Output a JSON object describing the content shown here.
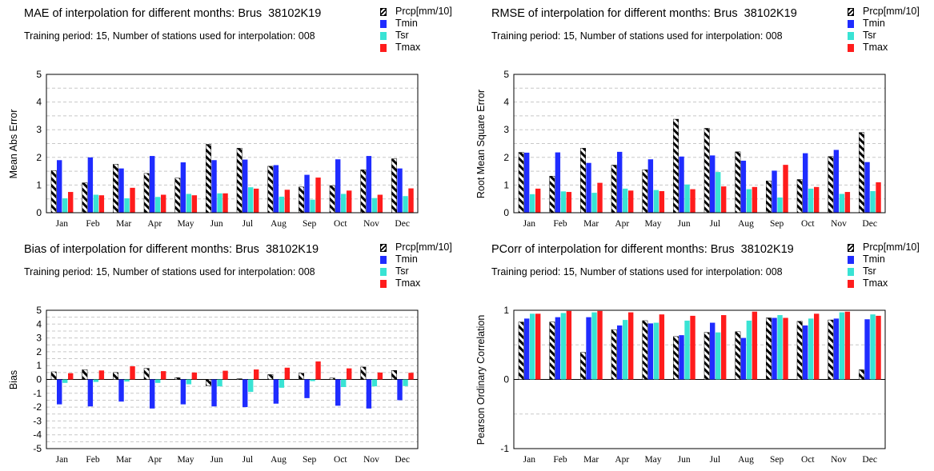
{
  "colors": {
    "Prcp": "hatch-black-white",
    "Tmin": "#1f2cff",
    "Tsr": "#39e3d4",
    "Tmax": "#ff1c1c",
    "grid": "#c8c8c8"
  },
  "chart_data": [
    {
      "type": "bar",
      "title": "MAE of interpolation for different months: Brus  38102K19",
      "subtitle": "Training period: 15, Number of stations used for interpolation: 008",
      "ylabel": "Mean Abs Error",
      "xlabel": "",
      "categories": [
        "Jan",
        "Feb",
        "Mar",
        "Apr",
        "May",
        "Jun",
        "Jul",
        "Aug",
        "Sep",
        "Oct",
        "Nov",
        "Dec"
      ],
      "ylim": [
        0,
        5
      ],
      "yticks": [
        "0",
        "1",
        "2",
        "3",
        "4",
        "5"
      ],
      "grid": true,
      "legend_position": "top-right",
      "series": [
        {
          "name": "Prcp[mm/10]",
          "values": [
            1.52,
            1.08,
            1.75,
            1.42,
            1.25,
            2.47,
            2.33,
            1.68,
            0.93,
            0.98,
            1.55,
            1.95
          ]
        },
        {
          "name": "Tmin",
          "values": [
            1.9,
            2.0,
            1.6,
            2.05,
            1.82,
            1.9,
            1.92,
            1.72,
            1.37,
            1.93,
            2.05,
            1.6
          ]
        },
        {
          "name": "Tsr",
          "values": [
            0.52,
            0.65,
            0.52,
            0.57,
            0.68,
            0.7,
            0.92,
            0.58,
            0.47,
            0.68,
            0.53,
            0.6
          ]
        },
        {
          "name": "Tmax",
          "values": [
            0.75,
            0.63,
            0.9,
            0.65,
            0.63,
            0.7,
            0.87,
            0.83,
            1.27,
            0.8,
            0.65,
            0.88
          ]
        }
      ]
    },
    {
      "type": "bar",
      "title": "RMSE of interpolation for different months: Brus  38102K19",
      "subtitle": "Training period: 15, Number of stations used for interpolation: 008",
      "ylabel": "Root Mean Square Error",
      "xlabel": "",
      "categories": [
        "Jan",
        "Feb",
        "Mar",
        "Apr",
        "May",
        "Jun",
        "Jul",
        "Aug",
        "Sep",
        "Oct",
        "Nov",
        "Dec"
      ],
      "ylim": [
        0,
        5
      ],
      "yticks": [
        "0",
        "1",
        "2",
        "3",
        "4",
        "5"
      ],
      "grid": true,
      "legend_position": "top-right",
      "series": [
        {
          "name": "Prcp[mm/10]",
          "values": [
            2.18,
            1.32,
            2.33,
            1.72,
            1.55,
            3.38,
            3.05,
            2.2,
            1.15,
            1.2,
            2.03,
            2.9
          ]
        },
        {
          "name": "Tmin",
          "values": [
            2.17,
            2.18,
            1.8,
            2.2,
            1.93,
            2.03,
            2.07,
            1.88,
            1.52,
            2.15,
            2.27,
            1.83
          ]
        },
        {
          "name": "Tsr",
          "values": [
            0.67,
            0.77,
            0.72,
            0.87,
            0.82,
            1.02,
            1.47,
            0.85,
            0.55,
            0.87,
            0.68,
            0.78
          ]
        },
        {
          "name": "Tmax",
          "values": [
            0.87,
            0.75,
            1.08,
            0.8,
            0.78,
            0.85,
            0.95,
            0.93,
            1.73,
            0.93,
            0.75,
            1.1
          ]
        }
      ]
    },
    {
      "type": "bar",
      "title": "Bias of interpolation for different months: Brus  38102K19",
      "subtitle": "Training period: 15, Number of stations used for interpolation: 008",
      "ylabel": "Bias",
      "xlabel": "",
      "categories": [
        "Jan",
        "Feb",
        "Mar",
        "Apr",
        "May",
        "Jun",
        "Jul",
        "Aug",
        "Sep",
        "Oct",
        "Nov",
        "Dec"
      ],
      "ylim": [
        -5,
        5
      ],
      "yticks": [
        "-5",
        "-4",
        "-3",
        "-2",
        "-1",
        "0",
        "1",
        "2",
        "3",
        "4",
        "5"
      ],
      "grid": true,
      "legend_position": "top-right",
      "series": [
        {
          "name": "Prcp[mm/10]",
          "values": [
            0.55,
            0.7,
            0.5,
            0.8,
            0.13,
            -0.45,
            0.05,
            0.35,
            0.45,
            0.1,
            0.9,
            0.65
          ]
        },
        {
          "name": "Tmin",
          "values": [
            -1.8,
            -1.95,
            -1.6,
            -2.1,
            -1.8,
            -1.95,
            -2.0,
            -1.75,
            -1.35,
            -1.9,
            -2.1,
            -1.5
          ]
        },
        {
          "name": "Tsr",
          "values": [
            -0.25,
            -0.18,
            -0.15,
            -0.25,
            -0.35,
            -0.5,
            -0.9,
            -0.6,
            -0.12,
            -0.55,
            -0.5,
            -0.48
          ]
        },
        {
          "name": "Tmax",
          "values": [
            0.45,
            0.65,
            0.95,
            0.6,
            0.5,
            0.63,
            0.72,
            0.85,
            1.3,
            0.8,
            0.5,
            0.48
          ]
        }
      ]
    },
    {
      "type": "bar",
      "title": "PCorr of interpolation for different months: Brus  38102K19",
      "subtitle": "Training period: 15, Number of stations used for interpolation: 008",
      "ylabel": "Pearson Ordinary Correlation",
      "xlabel": "",
      "categories": [
        "Jan",
        "Feb",
        "Mar",
        "Apr",
        "May",
        "Jun",
        "Jul",
        "Aug",
        "Sep",
        "Oct",
        "Nov",
        "Dec"
      ],
      "ylim": [
        -1,
        1
      ],
      "yticks": [
        "-1",
        "0",
        "1"
      ],
      "grid": true,
      "legend_position": "top-right",
      "series": [
        {
          "name": "Prcp[mm/10]",
          "values": [
            0.83,
            0.83,
            0.39,
            0.72,
            0.85,
            0.62,
            0.68,
            0.69,
            0.89,
            0.84,
            0.86,
            0.14
          ]
        },
        {
          "name": "Tmin",
          "values": [
            0.88,
            0.9,
            0.9,
            0.78,
            0.81,
            0.64,
            0.82,
            0.6,
            0.89,
            0.78,
            0.88,
            0.87
          ]
        },
        {
          "name": "Tsr",
          "values": [
            0.95,
            0.96,
            0.97,
            0.86,
            0.82,
            0.85,
            0.68,
            0.85,
            0.93,
            0.88,
            0.97,
            0.94
          ]
        },
        {
          "name": "Tmax",
          "values": [
            0.95,
            0.99,
            0.99,
            0.97,
            0.94,
            0.92,
            0.93,
            0.98,
            0.89,
            0.95,
            0.98,
            0.92
          ]
        }
      ]
    }
  ]
}
